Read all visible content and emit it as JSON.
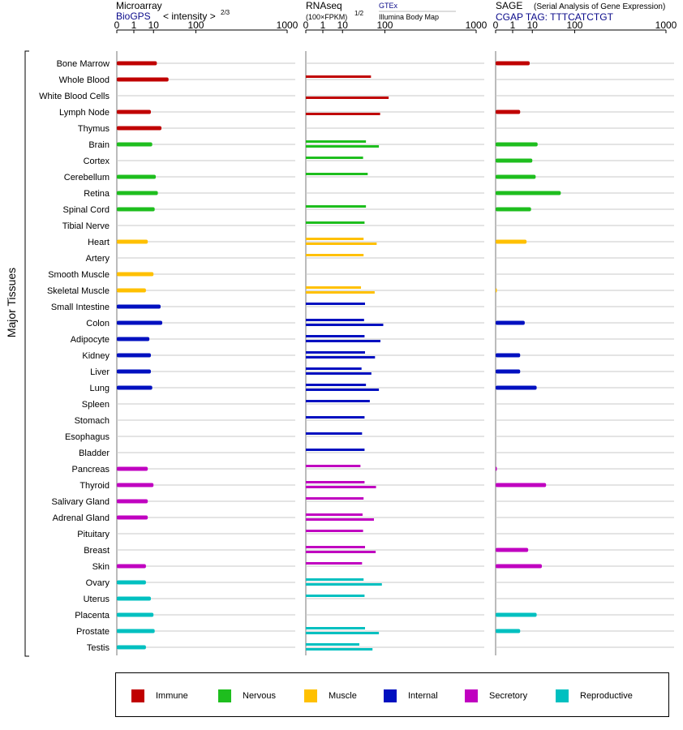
{
  "panels": [
    {
      "id": "microarray",
      "title": "Microarray",
      "subtitle": "BioGPS",
      "extra": "< intensity >",
      "exp": "2/3"
    },
    {
      "id": "rnaseq",
      "title": "RNAseq",
      "unit": "(100×FPKM)",
      "exp": "1/2",
      "src1": "GTEx",
      "src2": "Illumina Body Map"
    },
    {
      "id": "sage",
      "title": "SAGE",
      "desc": "(Serial Analysis of Gene Expression)",
      "subtitle": "CGAP TAG: TTTCATCTGT"
    }
  ],
  "y_group_label": "Major Tissues",
  "legend": [
    {
      "name": "Immune",
      "color": "#c00000"
    },
    {
      "name": "Nervous",
      "color": "#1ebe1e"
    },
    {
      "name": "Muscle",
      "color": "#ffc000"
    },
    {
      "name": "Internal",
      "color": "#0010c0"
    },
    {
      "name": "Secretory",
      "color": "#c000c0"
    },
    {
      "name": "Reproductive",
      "color": "#00c0c0"
    }
  ],
  "chart_data": {
    "type": "bar",
    "x_ticks": [
      "0",
      "1",
      "10",
      "100",
      "1000"
    ],
    "xlim": [
      0,
      1000
    ],
    "categories": [
      "Bone Marrow",
      "Whole Blood",
      "White Blood Cells",
      "Lymph Node",
      "Thymus",
      "Brain",
      "Cortex",
      "Cerebellum",
      "Retina",
      "Spinal Cord",
      "Tibial Nerve",
      "Heart",
      "Artery",
      "Smooth Muscle",
      "Skeletal Muscle",
      "Small Intestine",
      "Colon",
      "Adipocyte",
      "Kidney",
      "Liver",
      "Lung",
      "Spleen",
      "Stomach",
      "Esophagus",
      "Bladder",
      "Pancreas",
      "Thyroid",
      "Salivary Gland",
      "Adrenal Gland",
      "Pituitary",
      "Breast",
      "Skin",
      "Ovary",
      "Uterus",
      "Placenta",
      "Prostate",
      "Testis"
    ],
    "groups": [
      "Immune",
      "Immune",
      "Immune",
      "Immune",
      "Immune",
      "Nervous",
      "Nervous",
      "Nervous",
      "Nervous",
      "Nervous",
      "Nervous",
      "Muscle",
      "Muscle",
      "Muscle",
      "Muscle",
      "Internal",
      "Internal",
      "Internal",
      "Internal",
      "Internal",
      "Internal",
      "Internal",
      "Internal",
      "Internal",
      "Internal",
      "Secretory",
      "Secretory",
      "Secretory",
      "Secretory",
      "Secretory",
      "Secretory",
      "Secretory",
      "Reproductive",
      "Reproductive",
      "Reproductive",
      "Reproductive",
      "Reproductive"
    ],
    "microarray": [
      13,
      28,
      null,
      8,
      18,
      9,
      null,
      12,
      14,
      11,
      null,
      6,
      null,
      10,
      5,
      17,
      19,
      7,
      8,
      8,
      9,
      null,
      null,
      null,
      null,
      6,
      10,
      6,
      6,
      null,
      null,
      5,
      5,
      8,
      10,
      11,
      5
    ],
    "rnaseq_gtex": [
      null,
      56,
      null,
      null,
      null,
      44,
      38,
      48,
      null,
      44,
      41,
      39,
      39,
      null,
      34,
      42,
      40,
      41,
      42,
      35,
      44,
      53,
      41,
      36,
      41,
      33,
      41,
      39,
      37,
      38,
      42,
      36,
      39,
      41,
      null,
      42,
      31
    ],
    "rnaseq_ibm": [
      null,
      null,
      115,
      83,
      null,
      79,
      null,
      null,
      null,
      null,
      null,
      72,
      null,
      null,
      66,
      null,
      94,
      84,
      67,
      57,
      79,
      null,
      null,
      null,
      null,
      null,
      70,
      null,
      64,
      null,
      69,
      null,
      89,
      null,
      null,
      79,
      60
    ],
    "sage": [
      8,
      null,
      null,
      3,
      null,
      15,
      10,
      13,
      56,
      9,
      null,
      6,
      null,
      null,
      0,
      null,
      5,
      null,
      3,
      3,
      14,
      null,
      null,
      null,
      null,
      0,
      26,
      null,
      null,
      null,
      7,
      20,
      null,
      null,
      14,
      3,
      null
    ]
  }
}
